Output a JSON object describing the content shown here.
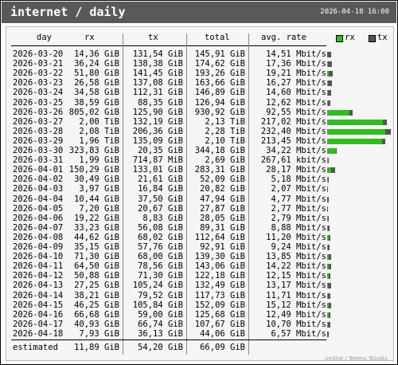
{
  "header": {
    "title": "internet / daily",
    "timestamp": "2026-04-18 16:00"
  },
  "columns": {
    "day": "day",
    "rx": "rx",
    "tx": "tx",
    "total": "total",
    "rate": "avg. rate"
  },
  "legend": {
    "rx": "rx",
    "tx": "tx",
    "rx_color": "#33bb22",
    "tx_color": "#555555"
  },
  "rows": [
    {
      "day": "2026-03-20",
      "rx": "14,36 GiB",
      "tx": "131,54 GiB",
      "total": "145,91 GiB",
      "rate": "14,51 Mbit/s",
      "rx_v": 14.36,
      "tx_v": 131.54
    },
    {
      "day": "2026-03-21",
      "rx": "36,24 GiB",
      "tx": "138,38 GiB",
      "total": "174,62 GiB",
      "rate": "17,36 Mbit/s",
      "rx_v": 36.24,
      "tx_v": 138.38
    },
    {
      "day": "2026-03-22",
      "rx": "51,80 GiB",
      "tx": "141,45 GiB",
      "total": "193,26 GiB",
      "rate": "19,21 Mbit/s",
      "rx_v": 51.8,
      "tx_v": 141.45
    },
    {
      "day": "2026-03-23",
      "rx": "26,58 GiB",
      "tx": "137,08 GiB",
      "total": "163,66 GiB",
      "rate": "16,27 Mbit/s",
      "rx_v": 26.58,
      "tx_v": 137.08
    },
    {
      "day": "2026-03-24",
      "rx": "34,58 GiB",
      "tx": "112,31 GiB",
      "total": "146,89 GiB",
      "rate": "14,60 Mbit/s",
      "rx_v": 34.58,
      "tx_v": 112.31
    },
    {
      "day": "2026-03-25",
      "rx": "38,59 GiB",
      "tx": "88,35 GiB",
      "total": "126,94 GiB",
      "rate": "12,62 Mbit/s",
      "rx_v": 38.59,
      "tx_v": 88.35
    },
    {
      "day": "2026-03-26",
      "rx": "805,02 GiB",
      "tx": "125,90 GiB",
      "total": "930,92 GiB",
      "rate": "92,55 Mbit/s",
      "rx_v": 805.02,
      "tx_v": 125.9
    },
    {
      "day": "2026-03-27",
      "rx": "2,00 TiB",
      "tx": "132,19 GiB",
      "total": "2,13 TiB",
      "rate": "217,02 Mbit/s",
      "rx_v": 2048,
      "tx_v": 132.19
    },
    {
      "day": "2026-03-28",
      "rx": "2,08 TiB",
      "tx": "206,36 GiB",
      "total": "2,28 TiB",
      "rate": "232,40 Mbit/s",
      "rx_v": 2130,
      "tx_v": 206.36
    },
    {
      "day": "2026-03-29",
      "rx": "1,96 TiB",
      "tx": "135,09 GiB",
      "total": "2,10 TiB",
      "rate": "213,45 Mbit/s",
      "rx_v": 2007,
      "tx_v": 135.09
    },
    {
      "day": "2026-03-30",
      "rx": "323,83 GiB",
      "tx": "20,35 GiB",
      "total": "344,18 GiB",
      "rate": "34,22 Mbit/s",
      "rx_v": 323.83,
      "tx_v": 20.35
    },
    {
      "day": "2026-03-31",
      "rx": "1,99 GiB",
      "tx": "714,87 MiB",
      "total": "2,69 GiB",
      "rate": "267,61 kbit/s",
      "rx_v": 1.99,
      "tx_v": 0.7
    },
    {
      "day": "2026-04-01",
      "rx": "150,29 GiB",
      "tx": "133,01 GiB",
      "total": "283,31 GiB",
      "rate": "28,17 Mbit/s",
      "rx_v": 150.29,
      "tx_v": 133.01
    },
    {
      "day": "2026-04-02",
      "rx": "30,49 GiB",
      "tx": "21,61 GiB",
      "total": "52,09 GiB",
      "rate": "5,18 Mbit/s",
      "rx_v": 30.49,
      "tx_v": 21.61
    },
    {
      "day": "2026-04-03",
      "rx": "3,97 GiB",
      "tx": "16,84 GiB",
      "total": "20,82 GiB",
      "rate": "2,07 Mbit/s",
      "rx_v": 3.97,
      "tx_v": 16.84
    },
    {
      "day": "2026-04-04",
      "rx": "10,44 GiB",
      "tx": "37,50 GiB",
      "total": "47,94 GiB",
      "rate": "4,77 Mbit/s",
      "rx_v": 10.44,
      "tx_v": 37.5
    },
    {
      "day": "2026-04-05",
      "rx": "7,20 GiB",
      "tx": "20,67 GiB",
      "total": "27,87 GiB",
      "rate": "2,77 Mbit/s",
      "rx_v": 7.2,
      "tx_v": 20.67
    },
    {
      "day": "2026-04-06",
      "rx": "19,22 GiB",
      "tx": "8,83 GiB",
      "total": "28,05 GiB",
      "rate": "2,79 Mbit/s",
      "rx_v": 19.22,
      "tx_v": 8.83
    },
    {
      "day": "2026-04-07",
      "rx": "33,23 GiB",
      "tx": "56,08 GiB",
      "total": "89,31 GiB",
      "rate": "8,88 Mbit/s",
      "rx_v": 33.23,
      "tx_v": 56.08
    },
    {
      "day": "2026-04-08",
      "rx": "44,62 GiB",
      "tx": "68,02 GiB",
      "total": "112,64 GiB",
      "rate": "11,20 Mbit/s",
      "rx_v": 44.62,
      "tx_v": 68.02
    },
    {
      "day": "2026-04-09",
      "rx": "35,15 GiB",
      "tx": "57,76 GiB",
      "total": "92,91 GiB",
      "rate": "9,24 Mbit/s",
      "rx_v": 35.15,
      "tx_v": 57.76
    },
    {
      "day": "2026-04-10",
      "rx": "71,30 GiB",
      "tx": "68,00 GiB",
      "total": "139,30 GiB",
      "rate": "13,85 Mbit/s",
      "rx_v": 71.3,
      "tx_v": 68.0
    },
    {
      "day": "2026-04-11",
      "rx": "64,50 GiB",
      "tx": "78,56 GiB",
      "total": "143,06 GiB",
      "rate": "14,22 Mbit/s",
      "rx_v": 64.5,
      "tx_v": 78.56
    },
    {
      "day": "2026-04-12",
      "rx": "50,88 GiB",
      "tx": "71,30 GiB",
      "total": "122,18 GiB",
      "rate": "12,15 Mbit/s",
      "rx_v": 50.88,
      "tx_v": 71.3
    },
    {
      "day": "2026-04-13",
      "rx": "27,25 GiB",
      "tx": "105,24 GiB",
      "total": "132,49 GiB",
      "rate": "13,17 Mbit/s",
      "rx_v": 27.25,
      "tx_v": 105.24
    },
    {
      "day": "2026-04-14",
      "rx": "38,21 GiB",
      "tx": "79,52 GiB",
      "total": "117,73 GiB",
      "rate": "11,71 Mbit/s",
      "rx_v": 38.21,
      "tx_v": 79.52
    },
    {
      "day": "2026-04-15",
      "rx": "46,25 GiB",
      "tx": "105,84 GiB",
      "total": "152,09 GiB",
      "rate": "15,12 Mbit/s",
      "rx_v": 46.25,
      "tx_v": 105.84
    },
    {
      "day": "2026-04-16",
      "rx": "66,68 GiB",
      "tx": "59,00 GiB",
      "total": "125,68 GiB",
      "rate": "12,49 Mbit/s",
      "rx_v": 66.68,
      "tx_v": 59.0
    },
    {
      "day": "2026-04-17",
      "rx": "40,93 GiB",
      "tx": "66,74 GiB",
      "total": "107,67 GiB",
      "rate": "10,70 Mbit/s",
      "rx_v": 40.93,
      "tx_v": 66.74
    },
    {
      "day": "2026-04-18",
      "rx": "7,93 GiB",
      "tx": "36,13 GiB",
      "total": "44,06 GiB",
      "rate": "6,57 Mbit/s",
      "rx_v": 7.93,
      "tx_v": 36.13
    }
  ],
  "estimated": {
    "label": "estimated",
    "rx": "11,89 GiB",
    "tx": "54,20 GiB",
    "total": "66,09 GiB"
  },
  "footer": "vnStat / Teemu Toivola"
}
